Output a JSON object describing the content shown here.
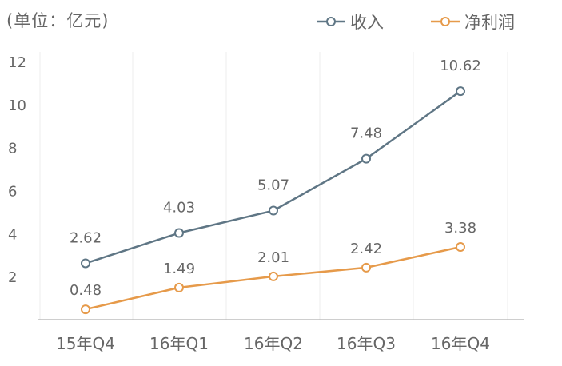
{
  "unit_label": "(单位：亿元)",
  "legend": [
    {
      "name": "收入",
      "color": "#5f7685"
    },
    {
      "name": "净利润",
      "color": "#e69a4a"
    }
  ],
  "chart_data": {
    "type": "line",
    "categories": [
      "15年Q4",
      "16年Q1",
      "16年Q2",
      "16年Q3",
      "16年Q4"
    ],
    "series": [
      {
        "name": "收入",
        "values": [
          2.62,
          4.03,
          5.07,
          7.48,
          10.62
        ],
        "color": "#5f7685"
      },
      {
        "name": "净利润",
        "values": [
          0.48,
          1.49,
          2.01,
          2.42,
          3.38
        ],
        "color": "#e69a4a"
      }
    ],
    "yticks": [
      2,
      4,
      6,
      8,
      10,
      12
    ],
    "ylim": [
      0,
      12
    ],
    "grid": "vertical",
    "legend_position": "top-right"
  }
}
